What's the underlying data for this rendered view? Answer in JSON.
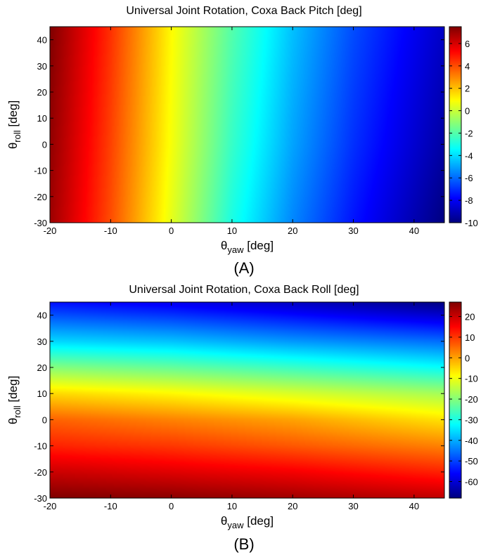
{
  "chart_data": [
    {
      "type": "heatmap",
      "panel_label": "(A)",
      "title": "Universal Joint Rotation, Coxa Back Pitch [deg]",
      "xlabel": {
        "sym": "θ",
        "sub": "yaw",
        "rest": " [deg]"
      },
      "ylabel": {
        "sym": "θ",
        "sub": "roll",
        "rest": " [deg]"
      },
      "xlim": [
        -20,
        45
      ],
      "ylim": [
        -30,
        45
      ],
      "x_ticks": [
        -20,
        -10,
        0,
        10,
        20,
        30,
        40
      ],
      "y_ticks": [
        -30,
        -20,
        -10,
        0,
        10,
        20,
        30,
        40
      ],
      "colorbar": {
        "range": [
          -10,
          7.5
        ],
        "ticks": [
          -10,
          -8,
          -6,
          -4,
          -2,
          0,
          2,
          4,
          6
        ]
      },
      "colormap": "jet",
      "x": [
        -20,
        -10,
        0,
        10,
        20,
        30,
        45
      ],
      "y": [
        -30,
        0,
        45
      ],
      "z": [
        [
          7,
          4,
          0.5,
          -3,
          -5.5,
          -7.5,
          -10
        ],
        [
          7.2,
          4.2,
          0.8,
          -2.5,
          -5,
          -7,
          -9.4
        ],
        [
          7.5,
          4.5,
          1,
          -2,
          -4.5,
          -6.5,
          -8.8
        ]
      ]
    },
    {
      "type": "heatmap",
      "panel_label": "(B)",
      "title": "Universal Joint Rotation, Coxa Back Roll [deg]",
      "xlabel": {
        "sym": "θ",
        "sub": "yaw",
        "rest": " [deg]"
      },
      "ylabel": {
        "sym": "θ",
        "sub": "roll",
        "rest": " [deg]"
      },
      "xlim": [
        -20,
        45
      ],
      "ylim": [
        -30,
        45
      ],
      "x_ticks": [
        -20,
        -10,
        0,
        10,
        20,
        30,
        40
      ],
      "y_ticks": [
        -30,
        -20,
        -10,
        0,
        10,
        20,
        30,
        40
      ],
      "colorbar": {
        "range": [
          -68,
          27
        ],
        "ticks": [
          -60,
          -50,
          -40,
          -30,
          -20,
          -10,
          0,
          10,
          20
        ]
      },
      "colormap": "jet",
      "x": [
        -20,
        0,
        20,
        45
      ],
      "y": [
        -30,
        -20,
        -10,
        0,
        10,
        20,
        30,
        45
      ],
      "z": [
        [
          27,
          26,
          24,
          21
        ],
        [
          20,
          18,
          16,
          12
        ],
        [
          12,
          10,
          7,
          3
        ],
        [
          6,
          3,
          0,
          -6
        ],
        [
          -5,
          -8,
          -12,
          -17
        ],
        [
          -20,
          -23,
          -27,
          -32
        ],
        [
          -36,
          -38,
          -42,
          -46
        ],
        [
          -55,
          -58,
          -62,
          -68
        ]
      ]
    }
  ]
}
